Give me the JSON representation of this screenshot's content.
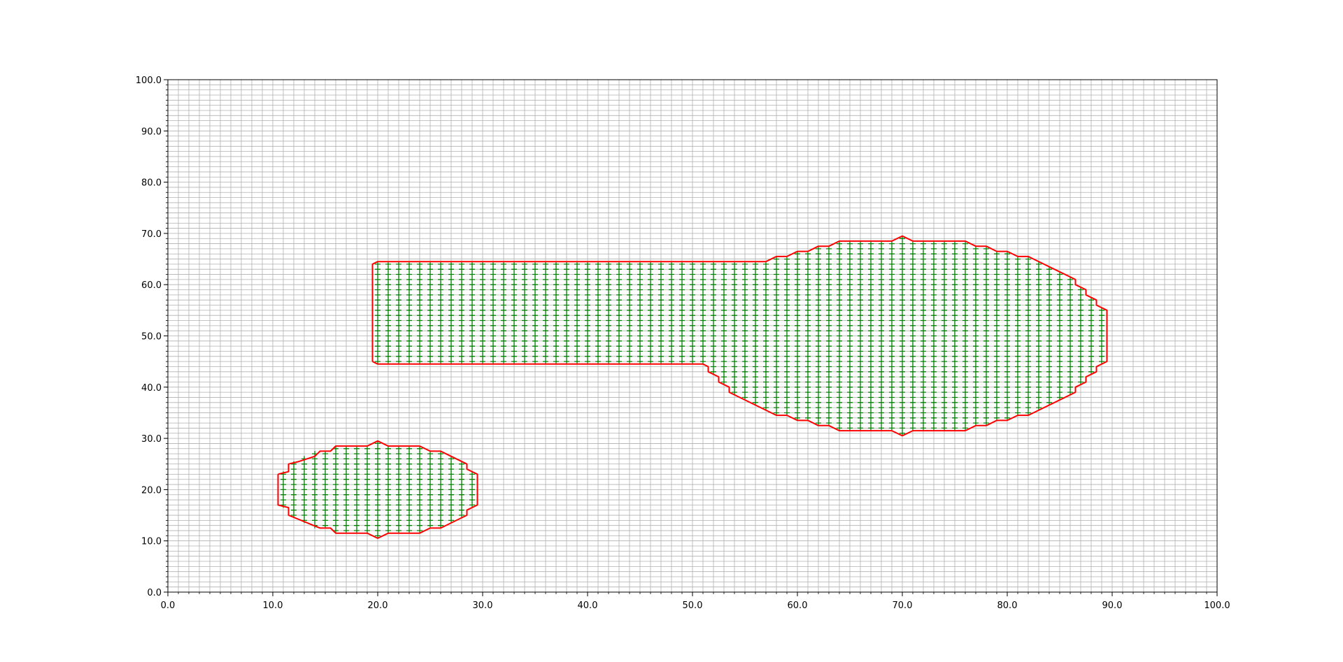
{
  "chart_data": {
    "type": "scatter",
    "title": "",
    "xlabel": "",
    "ylabel": "",
    "xlim": [
      0,
      100
    ],
    "ylim": [
      0,
      100
    ],
    "grid": true,
    "grid_minor_step": 1,
    "x_ticks": [
      0,
      10,
      20,
      30,
      40,
      50,
      60,
      70,
      80,
      90,
      100
    ],
    "y_ticks": [
      0,
      10,
      20,
      30,
      40,
      50,
      60,
      70,
      80,
      90,
      100
    ],
    "x_tick_labels": [
      "0.0",
      "10.0",
      "20.0",
      "30.0",
      "40.0",
      "50.0",
      "60.0",
      "70.0",
      "80.0",
      "90.0",
      "100.0"
    ],
    "y_tick_labels": [
      "0.0",
      "10.0",
      "20.0",
      "30.0",
      "40.0",
      "50.0",
      "60.0",
      "70.0",
      "80.0",
      "90.0",
      "100.0"
    ],
    "colors": {
      "grid": "#b0b0b0",
      "boundary": "#ff0000",
      "fill_points": "#008000"
    },
    "marker": "+",
    "point_spacing": 1,
    "regions": [
      {
        "boundary": [
          [
            10.5,
            23
          ],
          [
            11.5,
            23.5
          ],
          [
            11.5,
            25
          ],
          [
            12.5,
            25.5
          ],
          [
            14,
            26.5
          ],
          [
            14.5,
            27.5
          ],
          [
            15.5,
            27.5
          ],
          [
            16,
            28.5
          ],
          [
            19,
            28.5
          ],
          [
            20,
            29.5
          ],
          [
            21,
            28.5
          ],
          [
            24,
            28.5
          ],
          [
            25,
            27.5
          ],
          [
            26,
            27.5
          ],
          [
            28.5,
            25
          ],
          [
            28.5,
            24
          ],
          [
            29.5,
            23
          ],
          [
            29.5,
            17
          ],
          [
            28.5,
            16
          ],
          [
            28.5,
            15
          ],
          [
            26,
            12.5
          ],
          [
            25,
            12.5
          ],
          [
            24,
            11.5
          ],
          [
            21,
            11.5
          ],
          [
            20,
            10.5
          ],
          [
            19,
            11.5
          ],
          [
            16,
            11.5
          ],
          [
            15.5,
            12.5
          ],
          [
            14.5,
            12.5
          ],
          [
            11.5,
            15
          ],
          [
            11.5,
            16.5
          ],
          [
            10.5,
            17
          ],
          [
            10.5,
            23
          ]
        ],
        "rows": [
          {
            "x": 11,
            "y_min": 17,
            "y_max": 23
          },
          {
            "x": 12,
            "y_min": 15,
            "y_max": 25
          },
          {
            "x": 13,
            "y_min": 14,
            "y_max": 26
          },
          {
            "x": 14,
            "y_min": 13,
            "y_max": 27
          },
          {
            "x": 15,
            "y_min": 13,
            "y_max": 27
          },
          {
            "x": 16,
            "y_min": 12,
            "y_max": 28
          },
          {
            "x": 17,
            "y_min": 12,
            "y_max": 28
          },
          {
            "x": 18,
            "y_min": 12,
            "y_max": 28
          },
          {
            "x": 19,
            "y_min": 12,
            "y_max": 28
          },
          {
            "x": 20,
            "y_min": 11,
            "y_max": 29
          },
          {
            "x": 21,
            "y_min": 12,
            "y_max": 28
          },
          {
            "x": 22,
            "y_min": 12,
            "y_max": 28
          },
          {
            "x": 23,
            "y_min": 12,
            "y_max": 28
          },
          {
            "x": 24,
            "y_min": 12,
            "y_max": 28
          },
          {
            "x": 25,
            "y_min": 13,
            "y_max": 27
          },
          {
            "x": 26,
            "y_min": 13,
            "y_max": 27
          },
          {
            "x": 27,
            "y_min": 14,
            "y_max": 26
          },
          {
            "x": 28,
            "y_min": 15,
            "y_max": 25
          },
          {
            "x": 29,
            "y_min": 17,
            "y_max": 23
          }
        ]
      },
      {
        "boundary": [
          [
            19.5,
            45
          ],
          [
            19.5,
            64
          ],
          [
            20,
            64.5
          ],
          [
            57,
            64.5
          ],
          [
            58,
            65.5
          ],
          [
            59,
            65.5
          ],
          [
            60,
            66.5
          ],
          [
            61,
            66.5
          ],
          [
            62,
            67.5
          ],
          [
            63,
            67.5
          ],
          [
            64,
            68.5
          ],
          [
            69,
            68.5
          ],
          [
            70,
            69.5
          ],
          [
            71,
            68.5
          ],
          [
            76,
            68.5
          ],
          [
            77,
            67.5
          ],
          [
            78,
            67.5
          ],
          [
            79,
            66.5
          ],
          [
            80,
            66.5
          ],
          [
            81,
            65.5
          ],
          [
            82,
            65.5
          ],
          [
            86.5,
            61
          ],
          [
            86.5,
            60
          ],
          [
            87.5,
            59
          ],
          [
            87.5,
            58
          ],
          [
            88.5,
            57
          ],
          [
            88.5,
            56
          ],
          [
            89.5,
            55
          ],
          [
            89.5,
            45
          ],
          [
            88.5,
            44
          ],
          [
            88.5,
            43
          ],
          [
            87.5,
            42
          ],
          [
            87.5,
            41
          ],
          [
            86.5,
            40
          ],
          [
            86.5,
            39
          ],
          [
            82,
            34.5
          ],
          [
            81,
            34.5
          ],
          [
            80,
            33.5
          ],
          [
            79,
            33.5
          ],
          [
            78,
            32.5
          ],
          [
            77,
            32.5
          ],
          [
            76,
            31.5
          ],
          [
            71,
            31.5
          ],
          [
            70,
            30.5
          ],
          [
            69,
            31.5
          ],
          [
            64,
            31.5
          ],
          [
            63,
            32.5
          ],
          [
            62,
            32.5
          ],
          [
            61,
            33.5
          ],
          [
            60,
            33.5
          ],
          [
            59,
            34.5
          ],
          [
            58,
            34.5
          ],
          [
            53.5,
            39
          ],
          [
            53.5,
            40
          ],
          [
            52.5,
            41
          ],
          [
            52.5,
            42
          ],
          [
            51.5,
            43
          ],
          [
            51.5,
            44
          ],
          [
            51,
            44.5
          ],
          [
            20,
            44.5
          ],
          [
            19.5,
            45
          ]
        ],
        "rows": [
          {
            "x_from": 20,
            "x_to": 51,
            "y_min": 45,
            "y_max": 64
          },
          {
            "x": 52,
            "y_min": 43,
            "y_max": 64
          },
          {
            "x": 53,
            "y_min": 41,
            "y_max": 64
          },
          {
            "x": 54,
            "y_min": 39,
            "y_max": 64
          },
          {
            "x": 55,
            "y_min": 38,
            "y_max": 64
          },
          {
            "x": 56,
            "y_min": 37,
            "y_max": 64
          },
          {
            "x": 57,
            "y_min": 36,
            "y_max": 64
          },
          {
            "x": 58,
            "y_min": 35,
            "y_max": 65
          },
          {
            "x": 59,
            "y_min": 35,
            "y_max": 65
          },
          {
            "x": 60,
            "y_min": 34,
            "y_max": 66
          },
          {
            "x": 61,
            "y_min": 34,
            "y_max": 66
          },
          {
            "x": 62,
            "y_min": 33,
            "y_max": 67
          },
          {
            "x": 63,
            "y_min": 33,
            "y_max": 67
          },
          {
            "x_from": 64,
            "x_to": 69,
            "y_min": 32,
            "y_max": 68
          },
          {
            "x": 70,
            "y_min": 31,
            "y_max": 69
          },
          {
            "x_from": 71,
            "x_to": 76,
            "y_min": 32,
            "y_max": 68
          },
          {
            "x": 77,
            "y_min": 33,
            "y_max": 67
          },
          {
            "x": 78,
            "y_min": 33,
            "y_max": 67
          },
          {
            "x": 79,
            "y_min": 34,
            "y_max": 66
          },
          {
            "x": 80,
            "y_min": 34,
            "y_max": 66
          },
          {
            "x": 81,
            "y_min": 35,
            "y_max": 65
          },
          {
            "x": 82,
            "y_min": 35,
            "y_max": 65
          },
          {
            "x": 83,
            "y_min": 36,
            "y_max": 64
          },
          {
            "x": 84,
            "y_min": 37,
            "y_max": 63
          },
          {
            "x": 85,
            "y_min": 38,
            "y_max": 62
          },
          {
            "x": 86,
            "y_min": 39,
            "y_max": 61
          },
          {
            "x": 87,
            "y_min": 41,
            "y_max": 59
          },
          {
            "x": 88,
            "y_min": 43,
            "y_max": 57
          },
          {
            "x": 89,
            "y_min": 45,
            "y_max": 55
          }
        ]
      }
    ]
  }
}
